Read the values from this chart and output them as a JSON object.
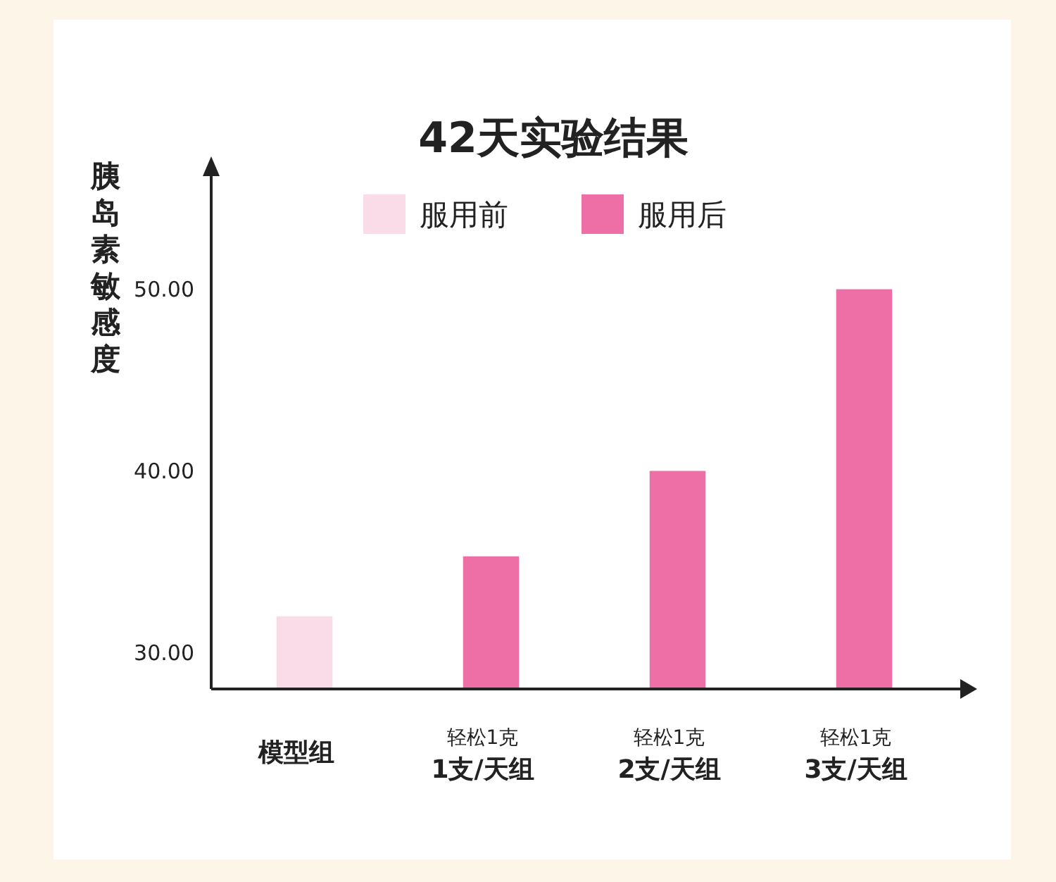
{
  "chart_data": {
    "type": "bar",
    "title": "42天实验结果",
    "ylabel": "胰岛素敏感度",
    "categories": [
      "模型组",
      "轻松1克\n1支/天组",
      "轻松1克\n2支/天组",
      "轻松1克\n3支/天组"
    ],
    "series": [
      {
        "name": "服用前",
        "color": "#fadbe8",
        "values": [
          32,
          null,
          null,
          null
        ]
      },
      {
        "name": "服用后",
        "color": "#ee6fa6",
        "values": [
          null,
          35.3,
          40,
          50
        ]
      }
    ],
    "ylim": [
      28,
      57
    ],
    "yticks": [
      {
        "value": 30,
        "label": "30.00"
      },
      {
        "value": 40,
        "label": "40.00"
      },
      {
        "value": 50,
        "label": "50.00"
      }
    ],
    "grid": false,
    "legend": "top"
  }
}
